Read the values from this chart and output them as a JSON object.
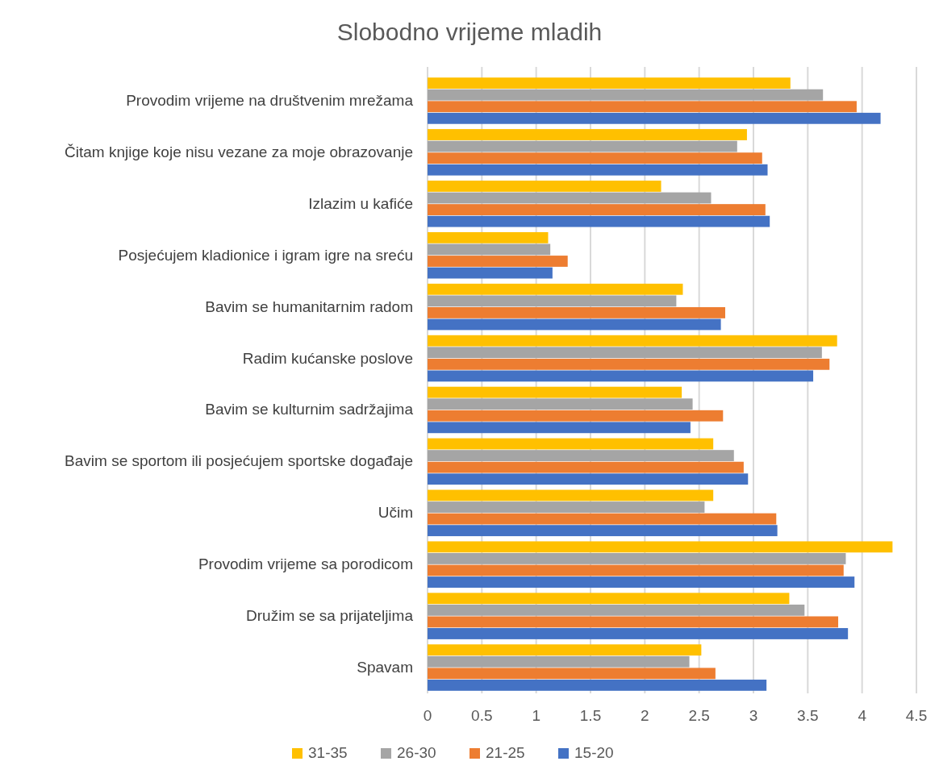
{
  "chart_data": {
    "type": "bar",
    "orientation": "horizontal",
    "title": "Slobodno vrijeme mladih",
    "categories": [
      "Provodim vrijeme na društvenim mrežama",
      "Čitam knjige koje nisu vezane za moje obrazovanje",
      "Izlazim u kafiće",
      "Posjećujem kladionice i igram igre na sreću",
      "Bavim se humanitarnim radom",
      "Radim kućanske poslove",
      "Bavim se kulturnim sadržajima",
      "Bavim se sportom ili posjećujem sportske događaje",
      "Učim",
      "Provodim vrijeme sa porodicom",
      "Družim se sa prijateljima",
      "Spavam"
    ],
    "series": [
      {
        "name": "31-35",
        "color": "#ffc000",
        "values": [
          3.34,
          2.94,
          2.15,
          1.11,
          2.35,
          3.77,
          2.34,
          2.63,
          2.63,
          4.28,
          3.33,
          2.52
        ]
      },
      {
        "name": "26-30",
        "color": "#a5a5a5",
        "values": [
          3.64,
          2.85,
          2.61,
          1.13,
          2.29,
          3.63,
          2.44,
          2.82,
          2.55,
          3.85,
          3.47,
          2.41
        ]
      },
      {
        "name": "21-25",
        "color": "#ed7d31",
        "values": [
          3.95,
          3.08,
          3.11,
          1.29,
          2.74,
          3.7,
          2.72,
          2.91,
          3.21,
          3.83,
          3.78,
          2.65
        ]
      },
      {
        "name": "15-20",
        "color": "#4472c4",
        "values": [
          4.17,
          3.13,
          3.15,
          1.15,
          2.7,
          3.55,
          2.42,
          2.95,
          3.22,
          3.93,
          3.87,
          3.12
        ]
      }
    ],
    "xlim": [
      0,
      4.5
    ],
    "xticks": [
      0,
      0.5,
      1,
      1.5,
      2,
      2.5,
      3,
      3.5,
      4,
      4.5
    ],
    "grid": "x",
    "legend": "bottom"
  }
}
